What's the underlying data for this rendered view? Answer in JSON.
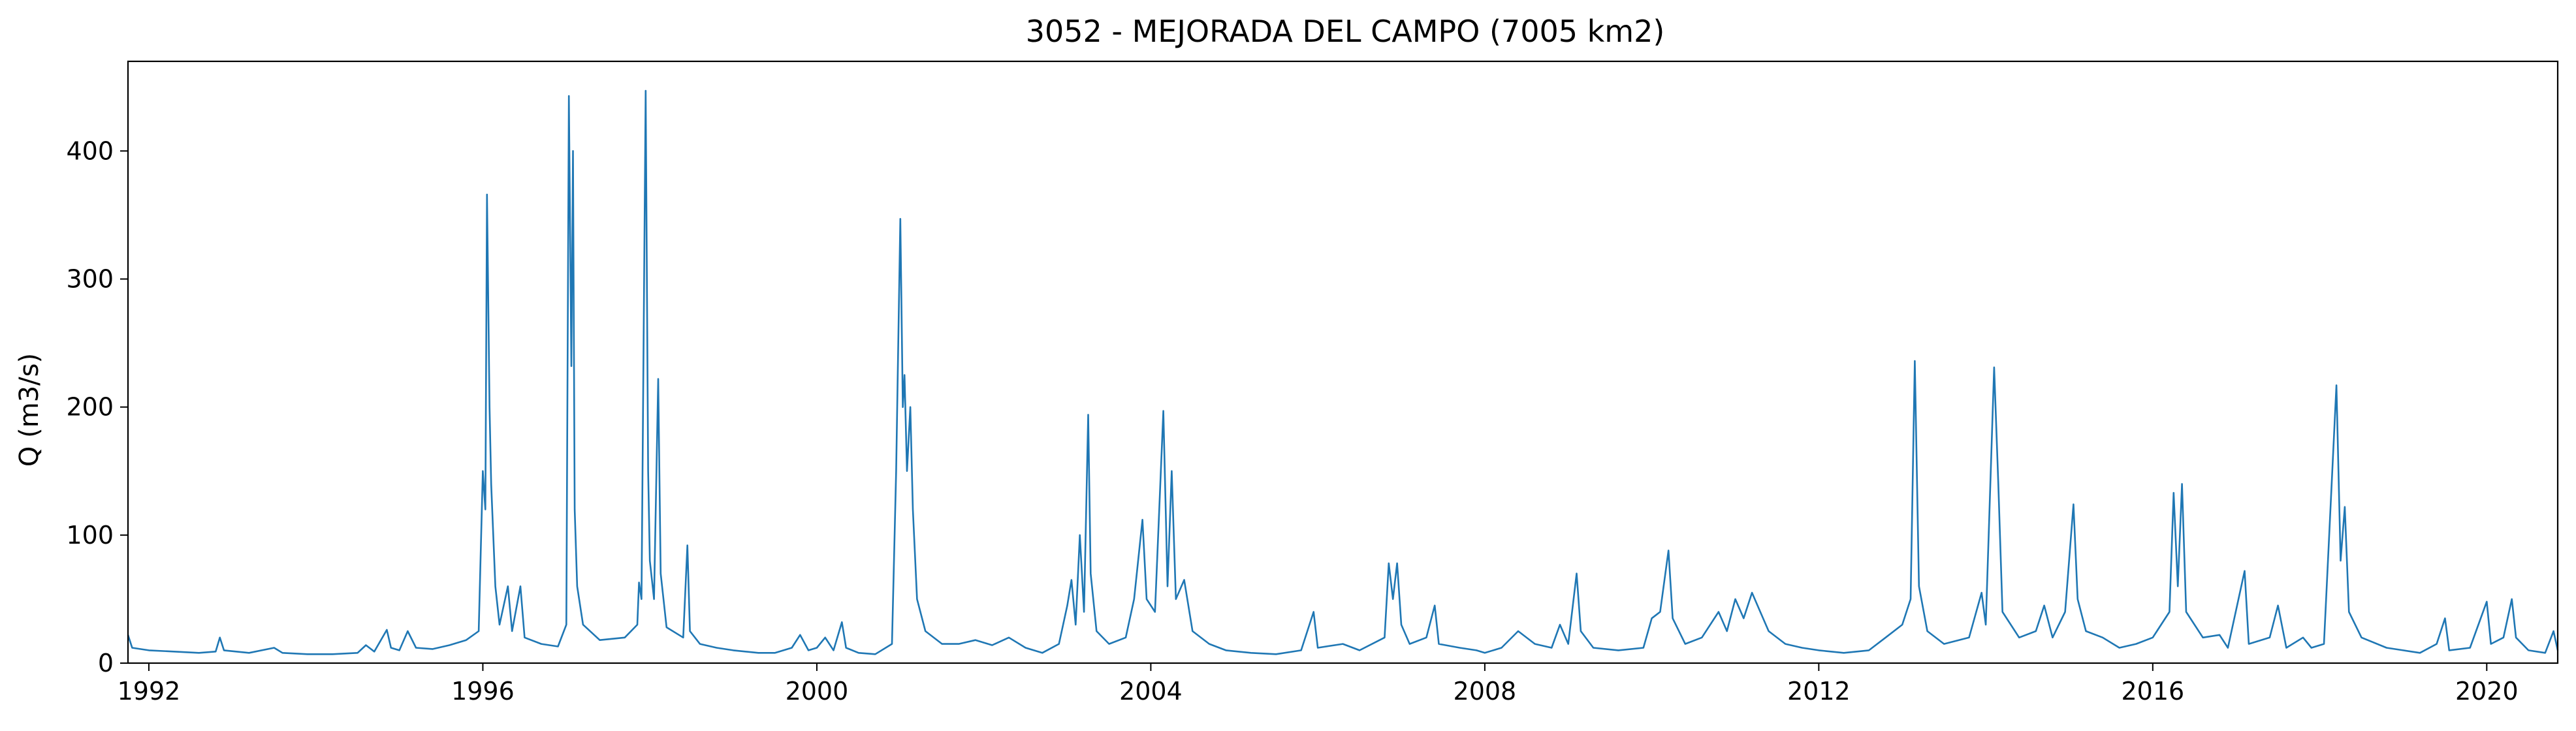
{
  "chart_data": {
    "type": "line",
    "title": "3052 - MEJORADA DEL CAMPO (7005 km2)",
    "xlabel": "",
    "ylabel": "Q (m3/s)",
    "xlim": [
      1991.75,
      2020.85
    ],
    "ylim": [
      0,
      470
    ],
    "x_ticks": [
      "1992",
      "1996",
      "2000",
      "2004",
      "2008",
      "2012",
      "2016",
      "2020"
    ],
    "y_ticks": [
      "0",
      "100",
      "200",
      "300",
      "400"
    ],
    "grid": false,
    "legend": "none",
    "series": [
      {
        "color": "#1f77b4",
        "points": [
          [
            1991.75,
            22
          ],
          [
            1991.8,
            12
          ],
          [
            1992.0,
            10
          ],
          [
            1992.3,
            9
          ],
          [
            1992.6,
            8
          ],
          [
            1992.8,
            9
          ],
          [
            1992.85,
            20
          ],
          [
            1992.9,
            10
          ],
          [
            1993.2,
            8
          ],
          [
            1993.5,
            12
          ],
          [
            1993.6,
            8
          ],
          [
            1993.9,
            7
          ],
          [
            1994.2,
            7
          ],
          [
            1994.5,
            8
          ],
          [
            1994.6,
            14
          ],
          [
            1994.7,
            9
          ],
          [
            1994.85,
            26
          ],
          [
            1994.9,
            12
          ],
          [
            1995.0,
            10
          ],
          [
            1995.1,
            25
          ],
          [
            1995.2,
            12
          ],
          [
            1995.4,
            11
          ],
          [
            1995.6,
            14
          ],
          [
            1995.8,
            18
          ],
          [
            1995.95,
            25
          ],
          [
            1996.0,
            150
          ],
          [
            1996.03,
            120
          ],
          [
            1996.05,
            366
          ],
          [
            1996.08,
            200
          ],
          [
            1996.1,
            140
          ],
          [
            1996.15,
            60
          ],
          [
            1996.2,
            30
          ],
          [
            1996.3,
            60
          ],
          [
            1996.35,
            25
          ],
          [
            1996.45,
            60
          ],
          [
            1996.5,
            20
          ],
          [
            1996.7,
            15
          ],
          [
            1996.9,
            13
          ],
          [
            1997.0,
            30
          ],
          [
            1997.03,
            443
          ],
          [
            1997.06,
            232
          ],
          [
            1997.08,
            400
          ],
          [
            1997.1,
            120
          ],
          [
            1997.13,
            60
          ],
          [
            1997.2,
            30
          ],
          [
            1997.4,
            18
          ],
          [
            1997.7,
            20
          ],
          [
            1997.85,
            30
          ],
          [
            1997.87,
            63
          ],
          [
            1997.9,
            50
          ],
          [
            1997.95,
            447
          ],
          [
            1997.98,
            150
          ],
          [
            1998.0,
            80
          ],
          [
            1998.05,
            50
          ],
          [
            1998.1,
            222
          ],
          [
            1998.13,
            70
          ],
          [
            1998.2,
            28
          ],
          [
            1998.4,
            20
          ],
          [
            1998.45,
            92
          ],
          [
            1998.48,
            25
          ],
          [
            1998.6,
            15
          ],
          [
            1998.8,
            12
          ],
          [
            1999.0,
            10
          ],
          [
            1999.3,
            8
          ],
          [
            1999.5,
            8
          ],
          [
            1999.7,
            12
          ],
          [
            1999.8,
            22
          ],
          [
            1999.9,
            10
          ],
          [
            2000.0,
            12
          ],
          [
            2000.1,
            20
          ],
          [
            2000.2,
            10
          ],
          [
            2000.3,
            32
          ],
          [
            2000.35,
            12
          ],
          [
            2000.5,
            8
          ],
          [
            2000.7,
            7
          ],
          [
            2000.9,
            15
          ],
          [
            2000.95,
            150
          ],
          [
            2001.0,
            347
          ],
          [
            2001.03,
            200
          ],
          [
            2001.05,
            225
          ],
          [
            2001.08,
            150
          ],
          [
            2001.12,
            200
          ],
          [
            2001.15,
            120
          ],
          [
            2001.2,
            50
          ],
          [
            2001.3,
            25
          ],
          [
            2001.5,
            15
          ],
          [
            2001.7,
            15
          ],
          [
            2001.9,
            18
          ],
          [
            2002.1,
            14
          ],
          [
            2002.3,
            20
          ],
          [
            2002.5,
            12
          ],
          [
            2002.7,
            8
          ],
          [
            2002.9,
            15
          ],
          [
            2003.0,
            45
          ],
          [
            2003.05,
            65
          ],
          [
            2003.1,
            30
          ],
          [
            2003.15,
            100
          ],
          [
            2003.2,
            40
          ],
          [
            2003.25,
            194
          ],
          [
            2003.28,
            70
          ],
          [
            2003.35,
            25
          ],
          [
            2003.5,
            15
          ],
          [
            2003.7,
            20
          ],
          [
            2003.8,
            50
          ],
          [
            2003.9,
            112
          ],
          [
            2003.95,
            50
          ],
          [
            2004.05,
            40
          ],
          [
            2004.15,
            197
          ],
          [
            2004.2,
            60
          ],
          [
            2004.25,
            150
          ],
          [
            2004.3,
            50
          ],
          [
            2004.4,
            65
          ],
          [
            2004.5,
            25
          ],
          [
            2004.7,
            15
          ],
          [
            2004.9,
            10
          ],
          [
            2005.2,
            8
          ],
          [
            2005.5,
            7
          ],
          [
            2005.8,
            10
          ],
          [
            2005.95,
            40
          ],
          [
            2006.0,
            12
          ],
          [
            2006.3,
            15
          ],
          [
            2006.5,
            10
          ],
          [
            2006.8,
            20
          ],
          [
            2006.85,
            78
          ],
          [
            2006.9,
            50
          ],
          [
            2006.95,
            78
          ],
          [
            2007.0,
            30
          ],
          [
            2007.1,
            15
          ],
          [
            2007.3,
            20
          ],
          [
            2007.4,
            45
          ],
          [
            2007.45,
            15
          ],
          [
            2007.7,
            12
          ],
          [
            2007.9,
            10
          ],
          [
            2008.0,
            8
          ],
          [
            2008.2,
            12
          ],
          [
            2008.4,
            25
          ],
          [
            2008.6,
            15
          ],
          [
            2008.8,
            12
          ],
          [
            2008.9,
            30
          ],
          [
            2009.0,
            15
          ],
          [
            2009.1,
            70
          ],
          [
            2009.15,
            25
          ],
          [
            2009.3,
            12
          ],
          [
            2009.6,
            10
          ],
          [
            2009.9,
            12
          ],
          [
            2010.0,
            35
          ],
          [
            2010.1,
            40
          ],
          [
            2010.2,
            88
          ],
          [
            2010.25,
            35
          ],
          [
            2010.4,
            15
          ],
          [
            2010.6,
            20
          ],
          [
            2010.8,
            40
          ],
          [
            2010.9,
            25
          ],
          [
            2011.0,
            50
          ],
          [
            2011.1,
            35
          ],
          [
            2011.2,
            55
          ],
          [
            2011.3,
            40
          ],
          [
            2011.4,
            25
          ],
          [
            2011.6,
            15
          ],
          [
            2011.8,
            12
          ],
          [
            2012.0,
            10
          ],
          [
            2012.3,
            8
          ],
          [
            2012.6,
            10
          ],
          [
            2012.8,
            20
          ],
          [
            2013.0,
            30
          ],
          [
            2013.1,
            50
          ],
          [
            2013.15,
            236
          ],
          [
            2013.2,
            60
          ],
          [
            2013.3,
            25
          ],
          [
            2013.5,
            15
          ],
          [
            2013.8,
            20
          ],
          [
            2013.95,
            55
          ],
          [
            2014.0,
            30
          ],
          [
            2014.1,
            231
          ],
          [
            2014.15,
            140
          ],
          [
            2014.2,
            40
          ],
          [
            2014.4,
            20
          ],
          [
            2014.6,
            25
          ],
          [
            2014.7,
            45
          ],
          [
            2014.8,
            20
          ],
          [
            2014.95,
            40
          ],
          [
            2015.05,
            124
          ],
          [
            2015.1,
            50
          ],
          [
            2015.2,
            25
          ],
          [
            2015.4,
            20
          ],
          [
            2015.6,
            12
          ],
          [
            2015.8,
            15
          ],
          [
            2016.0,
            20
          ],
          [
            2016.2,
            40
          ],
          [
            2016.25,
            133
          ],
          [
            2016.3,
            60
          ],
          [
            2016.35,
            140
          ],
          [
            2016.4,
            40
          ],
          [
            2016.6,
            20
          ],
          [
            2016.8,
            22
          ],
          [
            2016.9,
            12
          ],
          [
            2017.1,
            72
          ],
          [
            2017.15,
            15
          ],
          [
            2017.4,
            20
          ],
          [
            2017.5,
            45
          ],
          [
            2017.6,
            12
          ],
          [
            2017.8,
            20
          ],
          [
            2017.9,
            12
          ],
          [
            2018.05,
            15
          ],
          [
            2018.2,
            217
          ],
          [
            2018.25,
            80
          ],
          [
            2018.3,
            122
          ],
          [
            2018.35,
            40
          ],
          [
            2018.5,
            20
          ],
          [
            2018.8,
            12
          ],
          [
            2019.0,
            10
          ],
          [
            2019.2,
            8
          ],
          [
            2019.4,
            15
          ],
          [
            2019.5,
            35
          ],
          [
            2019.55,
            10
          ],
          [
            2019.8,
            12
          ],
          [
            2020.0,
            48
          ],
          [
            2020.05,
            15
          ],
          [
            2020.2,
            20
          ],
          [
            2020.3,
            50
          ],
          [
            2020.35,
            20
          ],
          [
            2020.5,
            10
          ],
          [
            2020.7,
            8
          ],
          [
            2020.8,
            25
          ],
          [
            2020.85,
            10
          ]
        ]
      }
    ]
  }
}
